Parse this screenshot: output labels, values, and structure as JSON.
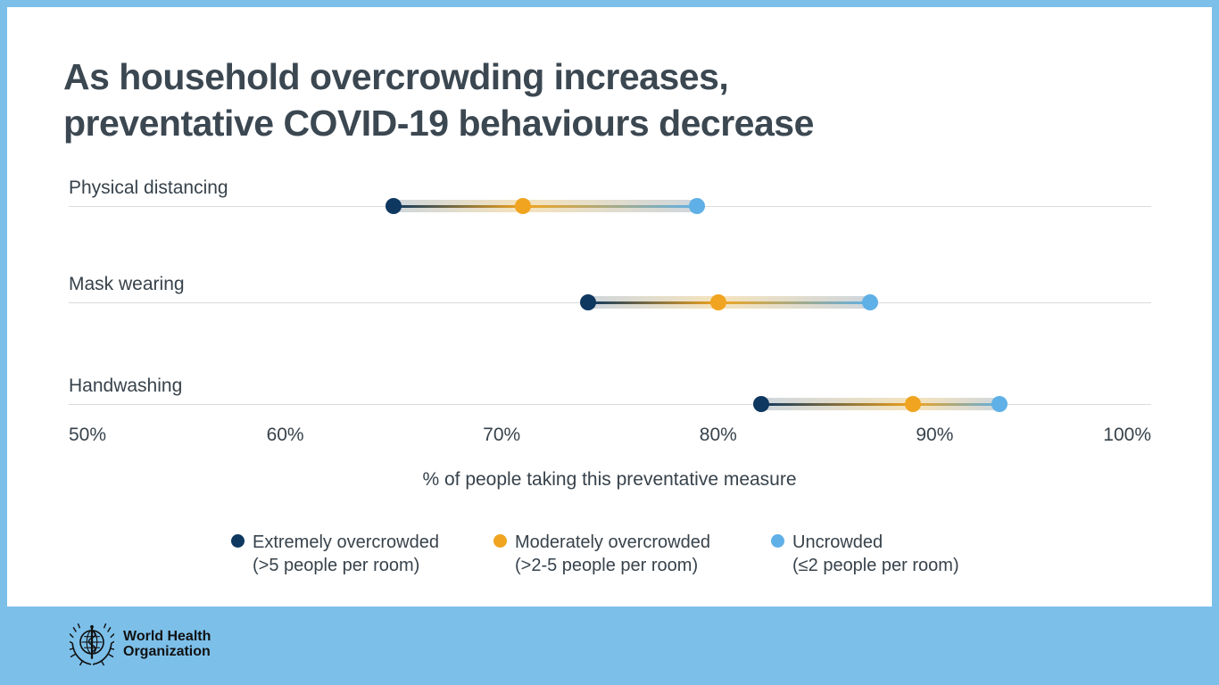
{
  "page": {
    "background_color": "#7cc0ea",
    "card_color": "#ffffff",
    "text_color": "#37424b",
    "title_color": "#3b4751",
    "gridline_color": "#d9dbdd"
  },
  "title": {
    "line1": "As household overcrowding increases,",
    "line2": "preventative COVID-19 behaviours decrease"
  },
  "chart_data": {
    "type": "scatter",
    "subtype": "dumbbell-dot-plot",
    "categories": [
      "Physical distancing",
      "Mask wearing",
      "Handwashing"
    ],
    "series": [
      {
        "name": "Extremely overcrowded (>5 people per room)",
        "color": "#0f3860",
        "values": [
          65,
          74,
          82
        ]
      },
      {
        "name": "Moderately overcrowded (>2-5 people per room)",
        "color": "#f0a41f",
        "values": [
          71,
          80,
          89
        ]
      },
      {
        "name": "Uncrowded (≤2 people per room)",
        "color": "#5fb0e6",
        "values": [
          79,
          87,
          93
        ]
      }
    ],
    "title": "As household overcrowding increases, preventative COVID-19 behaviours decrease",
    "xlabel": "% of people taking this preventative measure",
    "ylabel": "",
    "xlim": [
      50,
      100
    ],
    "tick_values": [
      50,
      60,
      70,
      80,
      90,
      100
    ],
    "tick_labels": [
      "50%",
      "60%",
      "70%",
      "80%",
      "90%",
      "100%"
    ],
    "grid": "one horizontal light line per category row, no vertical gridlines",
    "legend_position": "bottom",
    "band_colors": {
      "blue_gray": "#ccd5de",
      "pale_yellow": "#f5e3bc"
    }
  },
  "legend": {
    "items": [
      {
        "line1": "Extremely overcrowded",
        "line2": "(>5 people per room)",
        "color": "#0f3860"
      },
      {
        "line1": "Moderately overcrowded",
        "line2": "(>2-5 people per room)",
        "color": "#f0a41f"
      },
      {
        "line1": "Uncrowded",
        "line2": "(≤2 people per room)",
        "color": "#5fb0e6"
      }
    ]
  },
  "footer": {
    "emblem_icon": "who-globe-laurel-emblem",
    "org_line1": "World Health",
    "org_line2": "Organization"
  }
}
